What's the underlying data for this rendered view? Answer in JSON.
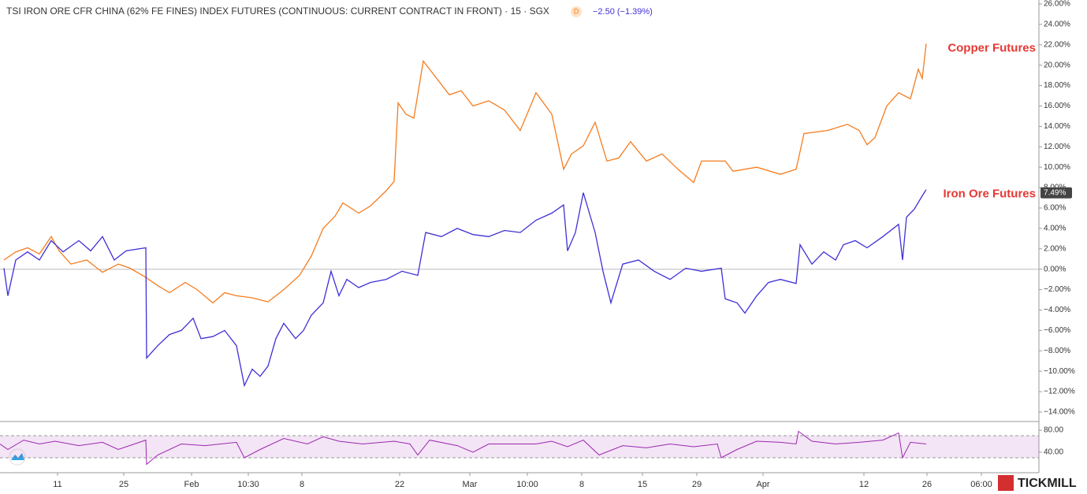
{
  "header": {
    "title": "TSI IRON ORE CFR CHINA (62% FE FINES) INDEX FUTURES (CONTINUOUS: CURRENT CONTRACT IN FRONT) · 15 · SGX",
    "badge": "D",
    "change": "−2.50 (−1.39%)"
  },
  "logo": "TICKMILL",
  "chart_data": [
    {
      "type": "line",
      "xlim": [
        0,
        1318
      ],
      "ylim": [
        -14,
        26
      ],
      "baseline": 0,
      "yticks": [
        {
          "value": 26,
          "label": "26.00%"
        },
        {
          "value": 24,
          "label": "24.00%"
        },
        {
          "value": 22,
          "label": "22.00%"
        },
        {
          "value": 20,
          "label": "20.00%"
        },
        {
          "value": 18,
          "label": "18.00%"
        },
        {
          "value": 16,
          "label": "16.00%"
        },
        {
          "value": 14,
          "label": "14.00%"
        },
        {
          "value": 12,
          "label": "12.00%"
        },
        {
          "value": 10,
          "label": "10.00%"
        },
        {
          "value": 8,
          "label": "8.00%"
        },
        {
          "value": 6,
          "label": "6.00%"
        },
        {
          "value": 4,
          "label": "4.00%"
        },
        {
          "value": 2,
          "label": "2.00%"
        },
        {
          "value": 0,
          "label": "0.00%"
        },
        {
          "value": -2,
          "label": "−2.00%"
        },
        {
          "value": -4,
          "label": "−4.00%"
        },
        {
          "value": -6,
          "label": "−6.00%"
        },
        {
          "value": -8,
          "label": "−8.00%"
        },
        {
          "value": -10,
          "label": "−10.00%"
        },
        {
          "value": -12,
          "label": "−12.00%"
        },
        {
          "value": -14,
          "label": "−14.00%"
        }
      ],
      "price_tag": {
        "value": 7.49,
        "label": "7.49%"
      },
      "series": [
        {
          "name": "Copper Futures",
          "color": "#f57c1f",
          "x": [
            5,
            20,
            35,
            50,
            65,
            75,
            90,
            110,
            130,
            150,
            165,
            185,
            200,
            215,
            235,
            250,
            270,
            285,
            300,
            320,
            340,
            360,
            380,
            395,
            410,
            425,
            435,
            455,
            470,
            490,
            500,
            505,
            515,
            525,
            537,
            550,
            570,
            585,
            600,
            620,
            640,
            660,
            680,
            700,
            715,
            725,
            740,
            755,
            770,
            785,
            800,
            820,
            840,
            860,
            880,
            890,
            920,
            930,
            960,
            990,
            1010,
            1020,
            1050,
            1075,
            1090,
            1100,
            1110,
            1125,
            1140,
            1155,
            1165,
            1170,
            1175
          ],
          "values": [
            0.9,
            1.7,
            2.1,
            1.5,
            3.2,
            1.8,
            0.5,
            0.9,
            -0.3,
            0.5,
            0.1,
            -0.8,
            -1.6,
            -2.3,
            -1.3,
            -2.0,
            -3.3,
            -2.3,
            -2.6,
            -2.8,
            -3.2,
            -2.0,
            -0.6,
            1.3,
            4.0,
            5.2,
            6.5,
            5.5,
            6.2,
            7.7,
            8.6,
            16.3,
            15.2,
            14.8,
            20.4,
            19.1,
            17.1,
            17.5,
            16.0,
            16.5,
            15.6,
            13.6,
            17.3,
            15.2,
            9.8,
            11.3,
            12.1,
            14.4,
            10.6,
            10.9,
            12.5,
            10.6,
            11.3,
            9.8,
            8.5,
            10.6,
            10.6,
            9.6,
            10.0,
            9.3,
            9.8,
            13.3,
            13.6,
            14.2,
            13.6,
            12.2,
            12.9,
            16.0,
            17.3,
            16.7,
            19.6,
            18.7,
            22.1
          ]
        },
        {
          "name": "Iron Ore Futures",
          "color": "#3f2fd6",
          "x": [
            5,
            10,
            20,
            35,
            50,
            65,
            80,
            100,
            115,
            130,
            145,
            160,
            185,
            186,
            200,
            215,
            230,
            245,
            255,
            270,
            285,
            300,
            310,
            320,
            330,
            340,
            350,
            360,
            375,
            385,
            395,
            410,
            420,
            430,
            440,
            455,
            470,
            490,
            510,
            530,
            540,
            560,
            580,
            600,
            620,
            640,
            660,
            680,
            700,
            715,
            720,
            730,
            740,
            755,
            765,
            775,
            790,
            810,
            830,
            850,
            870,
            890,
            915,
            920,
            935,
            945,
            960,
            975,
            990,
            1010,
            1015,
            1030,
            1045,
            1060,
            1070,
            1085,
            1100,
            1120,
            1140,
            1145,
            1150,
            1160,
            1170,
            1175
          ],
          "values": [
            0.1,
            -2.6,
            0.9,
            1.7,
            0.9,
            2.8,
            1.7,
            2.8,
            1.8,
            3.2,
            0.9,
            1.8,
            2.1,
            -8.7,
            -7.5,
            -6.4,
            -6.0,
            -4.8,
            -6.8,
            -6.6,
            -6.0,
            -7.5,
            -11.4,
            -9.8,
            -10.5,
            -9.5,
            -6.8,
            -5.3,
            -6.8,
            -6.0,
            -4.5,
            -3.3,
            -0.2,
            -2.6,
            -1.0,
            -1.8,
            -1.3,
            -1.0,
            -0.2,
            -0.6,
            3.6,
            3.2,
            4.0,
            3.4,
            3.2,
            3.8,
            3.6,
            4.8,
            5.5,
            6.3,
            1.8,
            3.6,
            7.5,
            3.6,
            -0.2,
            -3.3,
            0.5,
            0.9,
            -0.2,
            -1.0,
            0.1,
            -0.2,
            0.1,
            -2.9,
            -3.3,
            -4.3,
            -2.6,
            -1.3,
            -1.0,
            -1.4,
            2.4,
            0.5,
            1.7,
            0.9,
            2.4,
            2.8,
            2.1,
            3.2,
            4.4,
            0.9,
            5.1,
            5.9,
            7.2,
            7.8
          ]
        }
      ]
    },
    {
      "type": "rsi",
      "xlim": [
        0,
        1318
      ],
      "ylim": [
        7,
        93
      ],
      "band": [
        30,
        70
      ],
      "color": "#9c27b0",
      "yticks": [
        {
          "value": 80,
          "label": "80.00"
        },
        {
          "value": 40,
          "label": "40.00"
        }
      ],
      "xticks": [
        {
          "value": 73,
          "label": "11"
        },
        {
          "value": 157,
          "label": "25"
        },
        {
          "value": 243,
          "label": "Feb"
        },
        {
          "value": 315,
          "label": "10:30"
        },
        {
          "value": 383,
          "label": "8"
        },
        {
          "value": 507,
          "label": "22"
        },
        {
          "value": 596,
          "label": "Mar"
        },
        {
          "value": 669,
          "label": "10:00"
        },
        {
          "value": 738,
          "label": "8"
        },
        {
          "value": 815,
          "label": "15"
        },
        {
          "value": 884,
          "label": "29"
        },
        {
          "value": 968,
          "label": "Apr"
        },
        {
          "value": 1096,
          "label": "12"
        },
        {
          "value": 1176,
          "label": "26"
        },
        {
          "value": 1245,
          "label": "06:00"
        }
      ],
      "x": [
        0,
        10,
        30,
        50,
        70,
        100,
        130,
        150,
        185,
        186,
        200,
        230,
        260,
        300,
        310,
        330,
        360,
        390,
        410,
        430,
        460,
        500,
        520,
        530,
        545,
        580,
        600,
        620,
        680,
        700,
        720,
        740,
        760,
        790,
        820,
        850,
        880,
        910,
        915,
        935,
        960,
        990,
        1010,
        1013,
        1030,
        1060,
        1090,
        1120,
        1140,
        1145,
        1155,
        1175
      ],
      "values": [
        55,
        45,
        62,
        55,
        60,
        52,
        58,
        45,
        62,
        18,
        35,
        55,
        52,
        58,
        30,
        45,
        65,
        55,
        68,
        60,
        55,
        60,
        55,
        35,
        62,
        52,
        40,
        55,
        55,
        60,
        50,
        62,
        35,
        52,
        48,
        55,
        50,
        55,
        30,
        45,
        60,
        58,
        55,
        78,
        60,
        55,
        58,
        62,
        75,
        30,
        58,
        55
      ]
    }
  ]
}
